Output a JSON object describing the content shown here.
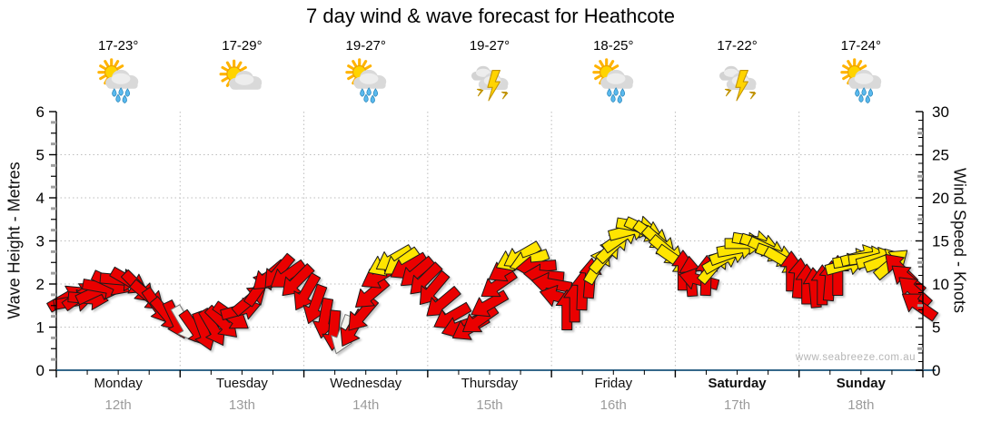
{
  "title": "7 day wind & wave forecast for Heathcote",
  "watermark": "www.seabreeze.com.au",
  "axes": {
    "left_label": "Wave Height - Metres",
    "right_label": "Wind Speed - Knots",
    "wave_ticks": [
      0,
      1,
      2,
      3,
      4,
      5,
      6
    ],
    "knot_ticks": [
      0,
      5,
      10,
      15,
      20,
      25,
      30
    ],
    "wave_range": [
      0,
      6
    ],
    "knots_range": [
      0,
      30
    ]
  },
  "days": [
    {
      "name": "Monday",
      "date": "12th",
      "temp": "17-23°",
      "icon": "sun-cloud-rain",
      "bold": false
    },
    {
      "name": "Tuesday",
      "date": "13th",
      "temp": "17-29°",
      "icon": "sun-cloud",
      "bold": false
    },
    {
      "name": "Wednesday",
      "date": "14th",
      "temp": "19-27°",
      "icon": "sun-cloud-rain",
      "bold": false
    },
    {
      "name": "Thursday",
      "date": "15th",
      "temp": "19-27°",
      "icon": "storm",
      "bold": false
    },
    {
      "name": "Friday",
      "date": "16th",
      "temp": "18-25°",
      "icon": "sun-cloud-rain",
      "bold": false
    },
    {
      "name": "Saturday",
      "date": "17th",
      "temp": "17-22°",
      "icon": "storm",
      "bold": true
    },
    {
      "name": "Sunday",
      "date": "18th",
      "temp": "17-24°",
      "icon": "sun-cloud-rain",
      "bold": true
    }
  ],
  "colors": {
    "arrow_red": "#ea0000",
    "arrow_yellow": "#ffe500",
    "arrow_white": "#f4f4ef",
    "arrow_stroke": "#1a1a1a",
    "bottom_axis": "#35678a",
    "grid": "#bdbdbd",
    "minor_tick_gray": "#a0a0a0",
    "date_text": "#9b9b9b",
    "watermark_text": "#b6b6b6"
  },
  "chart_data": {
    "type": "wind-arrow-timeseries",
    "x_unit": "hours from Monday 00:00 (0-168)",
    "categories": [
      "Monday 12th",
      "Tuesday 13th",
      "Wednesday 14th",
      "Thursday 15th",
      "Friday 16th",
      "Saturday 17th",
      "Sunday 18th"
    ],
    "left_axis": {
      "label": "Wave Height - Metres",
      "range": [
        0,
        6
      ],
      "grid_at": [
        1,
        2,
        3,
        4,
        5
      ]
    },
    "right_axis": {
      "label": "Wind Speed - Knots",
      "range": [
        0,
        30
      ]
    },
    "legend": "arrow colour: red = lighter wind (< ~12 kn), yellow = stronger wind (> ~12 kn), white = light/variable; arrow rotation = wind direction",
    "arrows": [
      [
        2.0,
        8.4,
        -30,
        "r"
      ],
      [
        3.4,
        8.0,
        -10,
        "r"
      ],
      [
        4.8,
        8.7,
        -35,
        "r"
      ],
      [
        6.2,
        8.3,
        5,
        "r"
      ],
      [
        7.6,
        9.1,
        -25,
        "r"
      ],
      [
        9.0,
        9.6,
        10,
        "r"
      ],
      [
        10.7,
        10.1,
        25,
        "r"
      ],
      [
        12.4,
        10.5,
        5,
        "r"
      ],
      [
        14.2,
        10.3,
        30,
        "r"
      ],
      [
        16.0,
        9.6,
        45,
        "r"
      ],
      [
        17.8,
        8.6,
        40,
        "r"
      ],
      [
        19.6,
        7.4,
        55,
        "r"
      ],
      [
        21.4,
        6.4,
        50,
        "r"
      ],
      [
        23.2,
        5.8,
        65,
        "r"
      ],
      [
        25.0,
        5.3,
        60,
        "w"
      ],
      [
        26.8,
        4.8,
        55,
        "r"
      ],
      [
        28.6,
        4.5,
        70,
        "r"
      ],
      [
        30.4,
        4.9,
        60,
        "r"
      ],
      [
        32.2,
        5.5,
        45,
        "r"
      ],
      [
        34.0,
        6.2,
        35,
        "r"
      ],
      [
        35.8,
        7.0,
        -15,
        "r"
      ],
      [
        37.6,
        8.2,
        -40,
        "r"
      ],
      [
        39.4,
        9.6,
        -55,
        "r"
      ],
      [
        41.2,
        10.9,
        140,
        "r"
      ],
      [
        43.0,
        11.4,
        130,
        "r"
      ],
      [
        44.8,
        11.0,
        145,
        "r"
      ],
      [
        46.6,
        10.3,
        135,
        "r"
      ],
      [
        48.4,
        9.0,
        120,
        "r"
      ],
      [
        50.2,
        7.6,
        110,
        "r"
      ],
      [
        52.0,
        6.0,
        100,
        "r"
      ],
      [
        53.8,
        4.6,
        95,
        "r"
      ],
      [
        55.6,
        4.1,
        110,
        "w"
      ],
      [
        57.4,
        4.8,
        120,
        "r"
      ],
      [
        59.2,
        6.4,
        130,
        "r"
      ],
      [
        61.0,
        8.8,
        140,
        "r"
      ],
      [
        62.6,
        10.9,
        150,
        "r"
      ],
      [
        64.0,
        12.3,
        155,
        "y"
      ],
      [
        65.4,
        12.9,
        150,
        "y"
      ],
      [
        66.8,
        12.5,
        145,
        "y"
      ],
      [
        68.2,
        12.0,
        150,
        "r"
      ],
      [
        69.8,
        11.3,
        140,
        "r"
      ],
      [
        71.4,
        10.5,
        135,
        "r"
      ],
      [
        73.0,
        9.4,
        130,
        "r"
      ],
      [
        74.8,
        7.8,
        140,
        "r"
      ],
      [
        76.6,
        6.2,
        150,
        "r"
      ],
      [
        78.4,
        5.1,
        160,
        "r"
      ],
      [
        80.2,
        4.9,
        150,
        "r"
      ],
      [
        82.0,
        5.8,
        145,
        "r"
      ],
      [
        83.8,
        7.6,
        150,
        "r"
      ],
      [
        85.6,
        9.9,
        145,
        "r"
      ],
      [
        87.2,
        11.7,
        150,
        "r"
      ],
      [
        88.8,
        12.9,
        155,
        "y"
      ],
      [
        90.2,
        13.3,
        150,
        "y"
      ],
      [
        91.6,
        12.7,
        160,
        "y"
      ],
      [
        93.0,
        12.0,
        175,
        "r"
      ],
      [
        94.5,
        11.0,
        185,
        "r"
      ],
      [
        96.0,
        10.0,
        190,
        "r"
      ],
      [
        97.5,
        8.5,
        195,
        "r"
      ],
      [
        99.0,
        7.0,
        -90,
        "r"
      ],
      [
        100.5,
        7.9,
        -90,
        "r"
      ],
      [
        102.0,
        9.3,
        -88,
        "r"
      ],
      [
        103.5,
        10.7,
        -85,
        "r"
      ],
      [
        105.0,
        12.2,
        -60,
        "y"
      ],
      [
        106.5,
        13.3,
        -50,
        "y"
      ],
      [
        108.0,
        14.4,
        -45,
        "y"
      ],
      [
        109.5,
        15.4,
        -35,
        "y"
      ],
      [
        111.0,
        16.2,
        -15,
        "y"
      ],
      [
        112.5,
        16.7,
        10,
        "y"
      ],
      [
        114.0,
        16.3,
        25,
        "y"
      ],
      [
        115.5,
        15.6,
        35,
        "y"
      ],
      [
        117.0,
        14.8,
        42,
        "y"
      ],
      [
        118.5,
        13.8,
        40,
        "y"
      ],
      [
        120.0,
        12.8,
        35,
        "y"
      ],
      [
        121.5,
        11.6,
        -90,
        "r"
      ],
      [
        123.0,
        10.9,
        -95,
        "r"
      ],
      [
        124.5,
        10.5,
        195,
        "r"
      ],
      [
        126.0,
        11.0,
        -88,
        "r"
      ],
      [
        127.5,
        12.1,
        -50,
        "y"
      ],
      [
        129.0,
        12.8,
        -30,
        "y"
      ],
      [
        130.5,
        13.5,
        -20,
        "y"
      ],
      [
        132.0,
        14.1,
        -10,
        "y"
      ],
      [
        133.5,
        14.7,
        0,
        "y"
      ],
      [
        135.0,
        15.0,
        10,
        "y"
      ],
      [
        136.5,
        14.6,
        18,
        "y"
      ],
      [
        138.0,
        14.0,
        25,
        "y"
      ],
      [
        139.5,
        13.4,
        20,
        "y"
      ],
      [
        141.0,
        12.7,
        30,
        "y"
      ],
      [
        142.5,
        11.5,
        -90,
        "r"
      ],
      [
        144.0,
        10.7,
        -85,
        "r"
      ],
      [
        145.5,
        10.0,
        -90,
        "r"
      ],
      [
        147.0,
        9.6,
        -95,
        "r"
      ],
      [
        148.5,
        9.9,
        -90,
        "r"
      ],
      [
        150.0,
        10.4,
        -85,
        "r"
      ],
      [
        151.5,
        11.0,
        -90,
        "r"
      ],
      [
        153.0,
        12.2,
        -15,
        "y"
      ],
      [
        154.5,
        12.8,
        -10,
        "y"
      ],
      [
        156.0,
        13.2,
        -15,
        "y"
      ],
      [
        157.5,
        13.1,
        -8,
        "y"
      ],
      [
        159.0,
        12.9,
        -15,
        "y"
      ],
      [
        160.5,
        12.7,
        -20,
        "y"
      ],
      [
        162.0,
        12.4,
        -40,
        "y"
      ],
      [
        163.5,
        11.8,
        -135,
        "r"
      ],
      [
        165.0,
        10.6,
        -140,
        "r"
      ],
      [
        166.3,
        9.2,
        -138,
        "r"
      ],
      [
        167.2,
        7.5,
        -145,
        "r"
      ]
    ]
  }
}
